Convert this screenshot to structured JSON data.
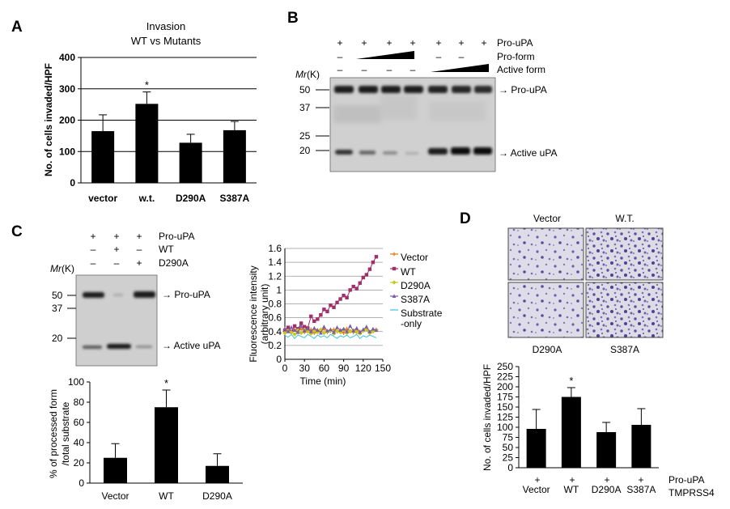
{
  "figure_type": "multi-panel scientific figure",
  "panels": {
    "A": {
      "label": "A",
      "title_line1": "Invasion",
      "title_line2": "WT vs Mutants",
      "ylabel": "No. of cells invaded/HPF",
      "star": "*"
    },
    "B": {
      "label": "B",
      "mr_label_m": "Mr",
      "mr_label_rest": "(K)",
      "row_labels": [
        "Pro-uPA",
        "Pro-form",
        "Active form"
      ],
      "row1_signs": [
        "+",
        "+",
        "+",
        "+",
        "+",
        "+",
        "+"
      ],
      "row2_signs": [
        "–",
        "–",
        "–"
      ],
      "row3_signs": [
        "–",
        "–",
        "–",
        "–"
      ],
      "mw_markers": [
        "50",
        "37",
        "25",
        "20"
      ],
      "band_labels": [
        "→ Pro-uPA",
        "→ Active uPA"
      ]
    },
    "C": {
      "label": "C",
      "row_labels": [
        "Pro-uPA",
        "WT",
        "D290A"
      ],
      "row1_signs": [
        "+",
        "+",
        "+"
      ],
      "row2_signs": [
        "–",
        "+",
        "–"
      ],
      "row3_signs": [
        "–",
        "–",
        "+"
      ],
      "mr_label_m": "Mr",
      "mr_label_rest": "(K)",
      "mw_markers": [
        "50",
        "37",
        "20"
      ],
      "band_labels": [
        "→ Pro-uPA",
        "→ Active uPA"
      ],
      "bar_ylabel_line1": "% of processed form",
      "bar_ylabel_line2": "/total substrate",
      "bar_star": "*",
      "line_ylabel_line1": "Fluorescence intensity",
      "line_ylabel_line2": "(arbitrary unit)",
      "line_xlabel": "Time (min)"
    },
    "D": {
      "label": "D",
      "image_labels": [
        "Vector",
        "W.T.",
        "D290A",
        "S387A"
      ],
      "ylabel": "No. of cells invaded/HPF",
      "star": "*",
      "row_signs": [
        "+",
        "+",
        "+",
        "+"
      ],
      "row_label": "Pro-uPA",
      "second_row_label": "TMPRSS4"
    }
  },
  "chart_data": [
    {
      "id": "A-bar",
      "type": "bar",
      "categories": [
        "vector",
        "w.t.",
        "D290A",
        "S387A"
      ],
      "values": [
        165,
        252,
        128,
        168
      ],
      "errors": [
        52,
        38,
        27,
        28
      ],
      "yticks": [
        "0",
        "100",
        "200",
        "300",
        "400"
      ],
      "ylim": [
        0,
        400
      ],
      "ylabel": "No. of cells invaded/HPF"
    },
    {
      "id": "C-bar",
      "type": "bar",
      "categories": [
        "Vector",
        "WT",
        "D290A"
      ],
      "values": [
        25,
        75,
        17
      ],
      "errors": [
        14,
        17,
        12
      ],
      "yticks": [
        "0",
        "20",
        "40",
        "60",
        "80",
        "100"
      ],
      "ylim": [
        0,
        100
      ],
      "ylabel": "% of processed form /total substrate"
    },
    {
      "id": "C-line",
      "type": "line",
      "xlabel": "Time (min)",
      "ylabel": "Fluorescence intensity (arbitrary unit)",
      "xlim": [
        0,
        150
      ],
      "ylim": [
        0,
        1.6
      ],
      "xticks": [
        "0",
        "30",
        "60",
        "90",
        "120",
        "150"
      ],
      "yticks": [
        "0",
        "0.2",
        "0.4",
        "0.6",
        "0.8",
        "1",
        "1.2",
        "1.4",
        "1.6"
      ],
      "x": [
        0,
        5,
        10,
        15,
        20,
        25,
        30,
        35,
        40,
        45,
        50,
        55,
        60,
        65,
        70,
        75,
        80,
        85,
        90,
        95,
        100,
        105,
        110,
        115,
        120,
        125,
        130,
        135,
        140
      ],
      "series": [
        {
          "name": "Vector",
          "color": "#e87a0c",
          "marker": "plus",
          "values": [
            0.4,
            0.42,
            0.38,
            0.43,
            0.4,
            0.44,
            0.39,
            0.41,
            0.43,
            0.38,
            0.42,
            0.4,
            0.44,
            0.39,
            0.41,
            0.43,
            0.4,
            0.42,
            0.38,
            0.44,
            0.41,
            0.39,
            0.43,
            0.4,
            0.42,
            0.44,
            0.39,
            0.41,
            0.43
          ]
        },
        {
          "name": "WT",
          "color": "#a0306a",
          "marker": "square",
          "values": [
            0.42,
            0.46,
            0.4,
            0.48,
            0.44,
            0.52,
            0.47,
            0.45,
            0.62,
            0.55,
            0.58,
            0.64,
            0.72,
            0.69,
            0.78,
            0.75,
            0.82,
            0.87,
            0.92,
            0.89,
            1.0,
            1.05,
            1.02,
            1.1,
            1.18,
            1.22,
            1.3,
            1.4,
            1.48
          ]
        },
        {
          "name": "D290A",
          "color": "#c7c81a",
          "marker": "diamond",
          "values": [
            0.38,
            0.41,
            0.39,
            0.36,
            0.42,
            0.38,
            0.43,
            0.4,
            0.37,
            0.41,
            0.39,
            0.43,
            0.38,
            0.4,
            0.42,
            0.37,
            0.41,
            0.39,
            0.43,
            0.38,
            0.4,
            0.42,
            0.39,
            0.37,
            0.41,
            0.43,
            0.38,
            0.4,
            0.42
          ]
        },
        {
          "name": "S387A",
          "color": "#7a5ca8",
          "marker": "triangle",
          "values": [
            0.44,
            0.4,
            0.46,
            0.42,
            0.39,
            0.48,
            0.41,
            0.44,
            0.4,
            0.45,
            0.42,
            0.38,
            0.47,
            0.41,
            0.43,
            0.39,
            0.46,
            0.42,
            0.44,
            0.4,
            0.48,
            0.41,
            0.45,
            0.39,
            0.43,
            0.47,
            0.4,
            0.44,
            0.42
          ]
        },
        {
          "name": "Substrate -only",
          "color": "#3cc6d8",
          "marker": "none",
          "values": [
            0.34,
            0.32,
            0.36,
            0.3,
            0.35,
            0.33,
            0.31,
            0.36,
            0.33,
            0.3,
            0.35,
            0.32,
            0.34,
            0.31,
            0.36,
            0.33,
            0.3,
            0.34,
            0.32,
            0.35,
            0.31,
            0.33,
            0.36,
            0.3,
            0.34,
            0.32,
            0.35,
            0.33,
            0.31
          ]
        }
      ],
      "legend_lines": [
        "Vector",
        "WT",
        "D290A",
        "S387A",
        "Substrate",
        "-only"
      ]
    },
    {
      "id": "D-bar",
      "type": "bar",
      "categories": [
        "Vector",
        "WT",
        "D290A",
        "S387A"
      ],
      "values": [
        96,
        175,
        88,
        106
      ],
      "errors": [
        48,
        23,
        24,
        40
      ],
      "yticks": [
        "0",
        "25",
        "50",
        "75",
        "100",
        "125",
        "150",
        "175",
        "200",
        "225",
        "250"
      ],
      "ylim": [
        0,
        250
      ],
      "ylabel": "No. of cells invaded/HPF"
    }
  ]
}
